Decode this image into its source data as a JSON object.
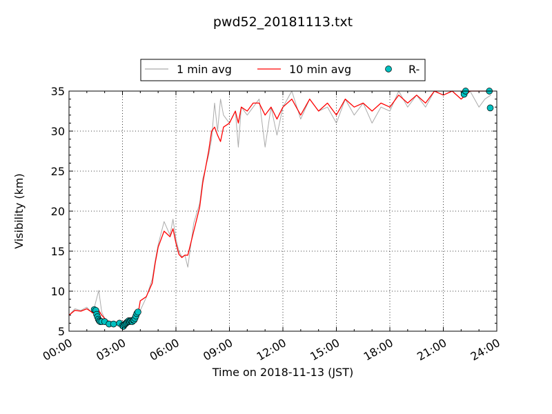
{
  "chart_data": {
    "type": "line",
    "title": "pwd52_20181113.txt",
    "xlabel": "Time on 2018-11-13 (JST)",
    "ylabel": "Visibility (km)",
    "xlim": [
      "2018-11-13 00:00",
      "2018-11-14 00:00"
    ],
    "ylim": [
      5,
      35
    ],
    "x_ticks": [
      "00:00",
      "03:00",
      "06:00",
      "09:00",
      "12:00",
      "15:00",
      "18:00",
      "21:00",
      "24:00"
    ],
    "y_ticks": [
      "5",
      "10",
      "15",
      "20",
      "25",
      "30",
      "35"
    ],
    "grid": true,
    "legend_position": "top-center",
    "colors": {
      "one_min": "#aaaaaa",
      "ten_min": "#ff0000",
      "marker": "#00bfbf"
    },
    "series": [
      {
        "name": "1 min avg",
        "style": "line",
        "x": [
          "00:00",
          "00:20",
          "00:40",
          "01:00",
          "01:20",
          "01:40",
          "01:50",
          "02:00",
          "02:10",
          "02:20",
          "02:40",
          "03:00",
          "03:10",
          "03:20",
          "03:30",
          "03:40",
          "03:50",
          "04:00",
          "04:20",
          "04:40",
          "04:50",
          "05:00",
          "05:20",
          "05:40",
          "05:50",
          "06:00",
          "06:10",
          "06:20",
          "06:30",
          "06:40",
          "07:00",
          "07:20",
          "07:30",
          "07:40",
          "07:50",
          "08:00",
          "08:10",
          "08:20",
          "08:30",
          "08:40",
          "09:00",
          "09:20",
          "09:30",
          "09:40",
          "10:00",
          "10:20",
          "10:40",
          "11:00",
          "11:20",
          "11:40",
          "12:00",
          "12:30",
          "13:00",
          "13:30",
          "14:00",
          "14:30",
          "15:00",
          "15:30",
          "16:00",
          "16:30",
          "17:00",
          "17:30",
          "18:00",
          "18:30",
          "19:00",
          "19:30",
          "20:00",
          "20:30",
          "21:00",
          "21:30",
          "22:00",
          "22:30",
          "23:00",
          "23:20",
          "23:40"
        ],
        "y": [
          7.0,
          7.8,
          7.6,
          8.0,
          7.2,
          10.1,
          7.4,
          6.6,
          6.2,
          6.1,
          6.0,
          5.8,
          5.6,
          5.9,
          6.2,
          6.3,
          6.8,
          7.6,
          9.2,
          11.5,
          13.8,
          15.8,
          18.7,
          17.0,
          19.0,
          16.5,
          15.0,
          14.3,
          14.5,
          13.0,
          18.5,
          21.0,
          24.0,
          25.5,
          27.0,
          29.0,
          33.5,
          30.0,
          34.0,
          32.0,
          31.0,
          32.5,
          28.0,
          33.0,
          32.0,
          33.0,
          34.0,
          28.0,
          33.0,
          29.5,
          33.0,
          35.0,
          31.5,
          34.0,
          32.5,
          33.0,
          31.0,
          34.0,
          32.0,
          33.5,
          31.0,
          33.0,
          32.5,
          35.0,
          33.0,
          34.5,
          33.0,
          35.0,
          34.5,
          35.0,
          34.0,
          35.0,
          33.0,
          34.0,
          34.5
        ]
      },
      {
        "name": "10 min avg",
        "style": "line",
        "x": [
          "00:00",
          "00:20",
          "00:40",
          "01:00",
          "01:20",
          "01:40",
          "01:50",
          "02:00",
          "02:10",
          "02:20",
          "02:40",
          "03:00",
          "03:10",
          "03:20",
          "03:30",
          "03:40",
          "03:50",
          "04:00",
          "04:20",
          "04:40",
          "04:50",
          "05:00",
          "05:20",
          "05:40",
          "05:50",
          "06:00",
          "06:10",
          "06:20",
          "06:30",
          "06:40",
          "07:00",
          "07:20",
          "07:30",
          "07:40",
          "07:50",
          "08:00",
          "08:10",
          "08:20",
          "08:30",
          "08:40",
          "09:00",
          "09:20",
          "09:30",
          "09:40",
          "10:00",
          "10:20",
          "10:40",
          "11:00",
          "11:20",
          "11:40",
          "12:00",
          "12:30",
          "13:00",
          "13:30",
          "14:00",
          "14:30",
          "15:00",
          "15:30",
          "16:00",
          "16:30",
          "17:00",
          "17:30",
          "18:00",
          "18:30",
          "19:00",
          "19:30",
          "20:00",
          "20:30",
          "21:00",
          "21:30",
          "22:00",
          "22:30",
          "23:00",
          "23:20",
          "23:40"
        ],
        "y": [
          7.0,
          7.6,
          7.5,
          7.8,
          7.3,
          7.6,
          7.0,
          6.6,
          6.3,
          6.2,
          6.1,
          5.9,
          5.7,
          5.9,
          6.1,
          6.2,
          6.6,
          8.8,
          9.3,
          11.0,
          13.5,
          15.5,
          17.5,
          16.8,
          17.8,
          16.0,
          14.6,
          14.2,
          14.5,
          14.5,
          17.5,
          20.5,
          23.5,
          25.5,
          27.5,
          30.0,
          30.5,
          29.5,
          28.7,
          30.5,
          31.0,
          32.5,
          31.0,
          33.0,
          32.5,
          33.5,
          33.5,
          32.0,
          33.0,
          31.5,
          33.0,
          34.0,
          32.0,
          34.0,
          32.5,
          33.5,
          32.0,
          34.0,
          33.0,
          33.5,
          32.5,
          33.5,
          33.0,
          34.5,
          33.5,
          34.5,
          33.5,
          35.0,
          34.5,
          35.0,
          34.0,
          35.0,
          35.0,
          35.0,
          35.0
        ]
      },
      {
        "name": "R-",
        "style": "marker",
        "x": [
          "01:25",
          "01:30",
          "01:33",
          "01:36",
          "01:39",
          "01:42",
          "01:45",
          "01:50",
          "02:00",
          "02:15",
          "02:30",
          "02:50",
          "03:00",
          "03:03",
          "03:06",
          "03:09",
          "03:12",
          "03:15",
          "03:18",
          "03:21",
          "03:24",
          "03:27",
          "03:30",
          "03:33",
          "03:36",
          "03:39",
          "03:42",
          "03:45",
          "03:48",
          "03:52",
          "22:10",
          "22:15",
          "23:35",
          "23:38"
        ],
        "y": [
          7.7,
          7.6,
          7.1,
          6.8,
          6.5,
          6.3,
          6.2,
          6.2,
          6.2,
          5.9,
          5.9,
          6.0,
          5.7,
          5.6,
          5.8,
          5.9,
          6.0,
          6.1,
          6.2,
          6.3,
          6.2,
          6.3,
          6.3,
          6.2,
          6.4,
          6.4,
          6.6,
          6.9,
          7.2,
          7.4,
          34.6,
          35.0,
          35.0,
          32.9
        ]
      }
    ]
  }
}
